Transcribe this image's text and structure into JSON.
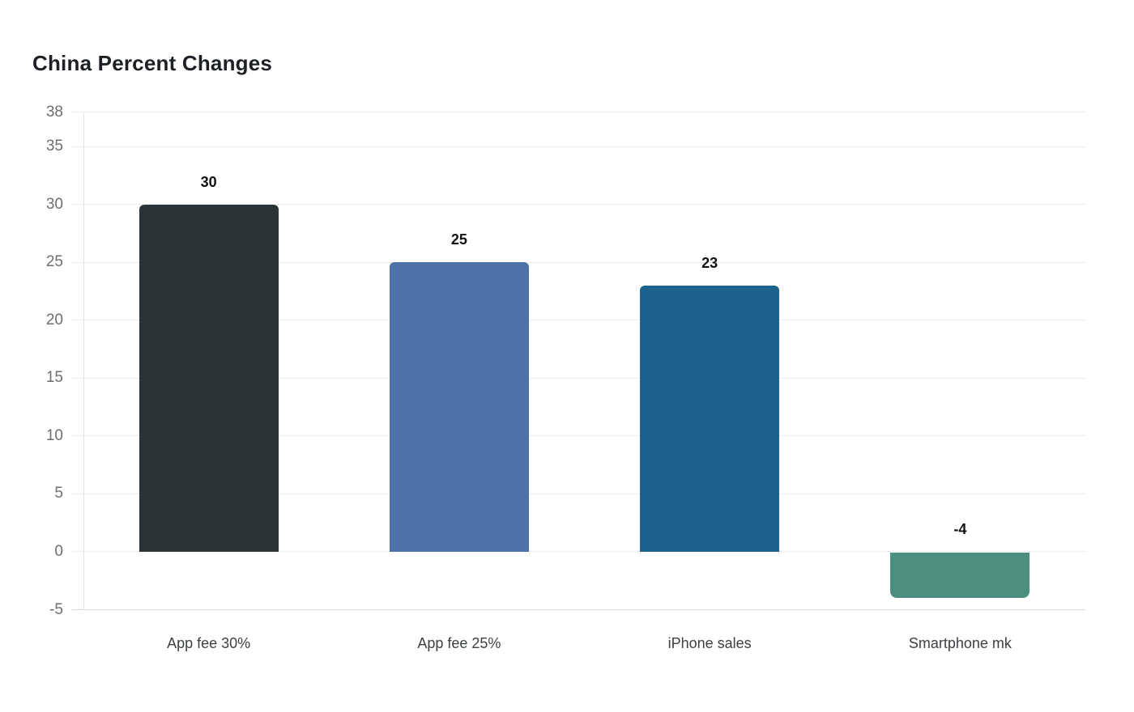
{
  "header": {
    "title": "China Percent Changes",
    "title_color": "#1d2125"
  },
  "chart_data": {
    "type": "bar",
    "title": "China Percent Changes",
    "categories": [
      "App fee 30%",
      "App fee 25%",
      "iPhone sales",
      "Smartphone mk"
    ],
    "values": [
      30,
      25,
      23,
      -4
    ],
    "value_labels": [
      "30",
      "25",
      "23",
      "-4"
    ],
    "bar_colors": [
      "#2b3336",
      "#4c72a8",
      "#1b628c",
      "#4d8f7e"
    ],
    "yticks": [
      38,
      35,
      30,
      25,
      20,
      15,
      10,
      5,
      0,
      -5
    ],
    "ylim": [
      -5,
      38
    ],
    "xlabel": "",
    "ylabel": "",
    "grid": true,
    "legend": "none",
    "colors": {
      "grid": "#ececec",
      "baseline": "#d9d9d9",
      "axis_line": "#e4e4e4",
      "tick_label": "#6e6e6e",
      "category_label": "#3c4043",
      "value_label": "#111111",
      "background": "#ffffff"
    }
  }
}
